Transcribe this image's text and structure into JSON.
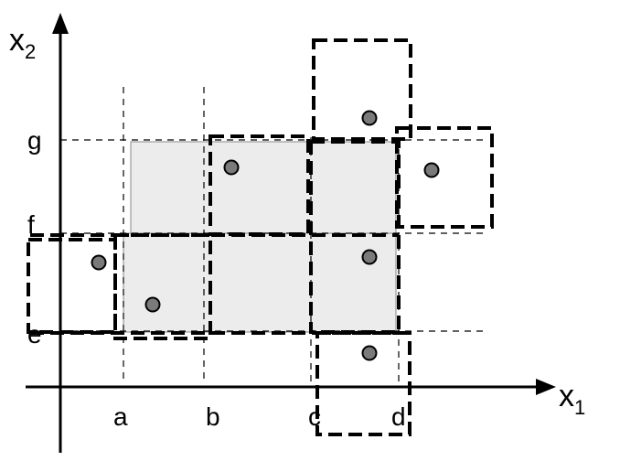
{
  "axes": {
    "x": {
      "base": "x",
      "sub": "1"
    },
    "y": {
      "base": "x",
      "sub": "2"
    }
  },
  "ticks": {
    "a": "a",
    "b": "b",
    "c": "c",
    "d": "d",
    "e": "e",
    "f": "f",
    "g": "g"
  },
  "colors": {
    "region_fill": "#ececec",
    "dot_fill": "#7a7a7a",
    "line": "#000000"
  }
}
